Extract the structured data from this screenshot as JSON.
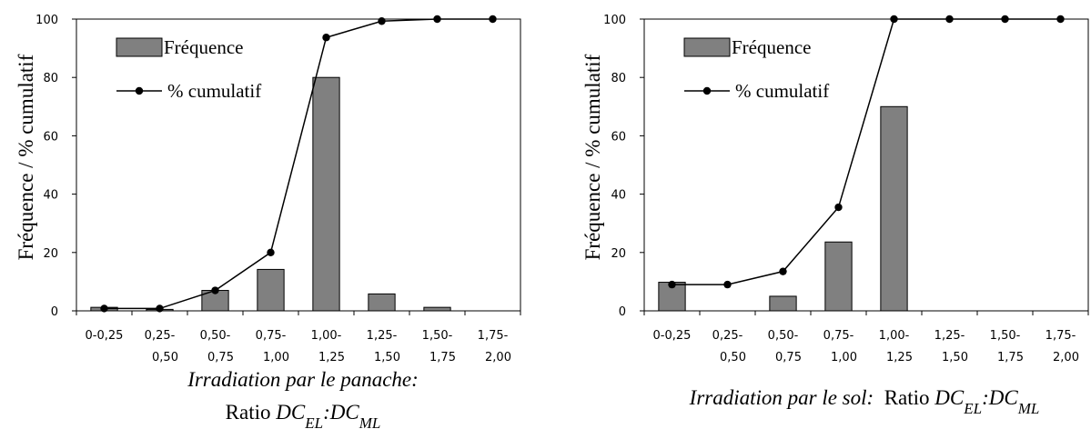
{
  "chart_data": [
    {
      "type": "bar",
      "categories": [
        [
          "0-0,25",
          ""
        ],
        [
          "0,25-",
          "0,50"
        ],
        [
          "0,50-",
          "0,75"
        ],
        [
          "0,75-",
          "1,00"
        ],
        [
          "1,00-",
          "1,25"
        ],
        [
          "1,25-",
          "1,50"
        ],
        [
          "1,50-",
          "1,75"
        ],
        [
          "1,75-",
          "2,00"
        ]
      ],
      "series": [
        {
          "name": "Fréquence",
          "type": "bar",
          "values": [
            1.2,
            0.5,
            7,
            14.2,
            80,
            5.8,
            1.2,
            0
          ]
        },
        {
          "name": "% cumulatif",
          "type": "line",
          "values": [
            0.8,
            0.8,
            7,
            20,
            93.7,
            99.3,
            100,
            100
          ]
        }
      ],
      "ylim": [
        0,
        100
      ],
      "yticks": [
        0,
        20,
        40,
        60,
        80,
        100
      ],
      "ylabel": "Fréquence / % cumulatif",
      "xlabel": {
        "line1": "Irradiation par le panache:",
        "ratio_word": "Ratio",
        "ratio_expr": [
          "DC",
          "EL",
          ":DC",
          "ML"
        ]
      },
      "legend": "top-left",
      "grid": false
    },
    {
      "type": "bar",
      "categories": [
        [
          "0-0,25",
          ""
        ],
        [
          "0,25-",
          "0,50"
        ],
        [
          "0,50-",
          "0,75"
        ],
        [
          "0,75-",
          "1,00"
        ],
        [
          "1,00-",
          "1,25"
        ],
        [
          "1,25-",
          "1,50"
        ],
        [
          "1,50-",
          "1,75"
        ],
        [
          "1,75-",
          "2,00"
        ]
      ],
      "series": [
        {
          "name": "Fréquence",
          "type": "bar",
          "values": [
            9.8,
            0,
            5,
            23.6,
            70,
            0,
            0,
            0
          ]
        },
        {
          "name": "% cumulatif",
          "type": "line",
          "values": [
            9,
            9,
            13.5,
            35.5,
            100,
            100,
            100,
            100
          ]
        }
      ],
      "ylim": [
        0,
        100
      ],
      "yticks": [
        0,
        20,
        40,
        60,
        80,
        100
      ],
      "ylabel": "Fréquence / % cumulatif",
      "xlabel": {
        "line1": "Irradiation par le sol:",
        "ratio_word": "Ratio",
        "ratio_expr": [
          "DC",
          "EL",
          ":DC",
          "ML"
        ]
      },
      "legend": "top-left",
      "grid": false
    }
  ],
  "colors": {
    "bar_fill": "#808080",
    "line": "#000000"
  }
}
